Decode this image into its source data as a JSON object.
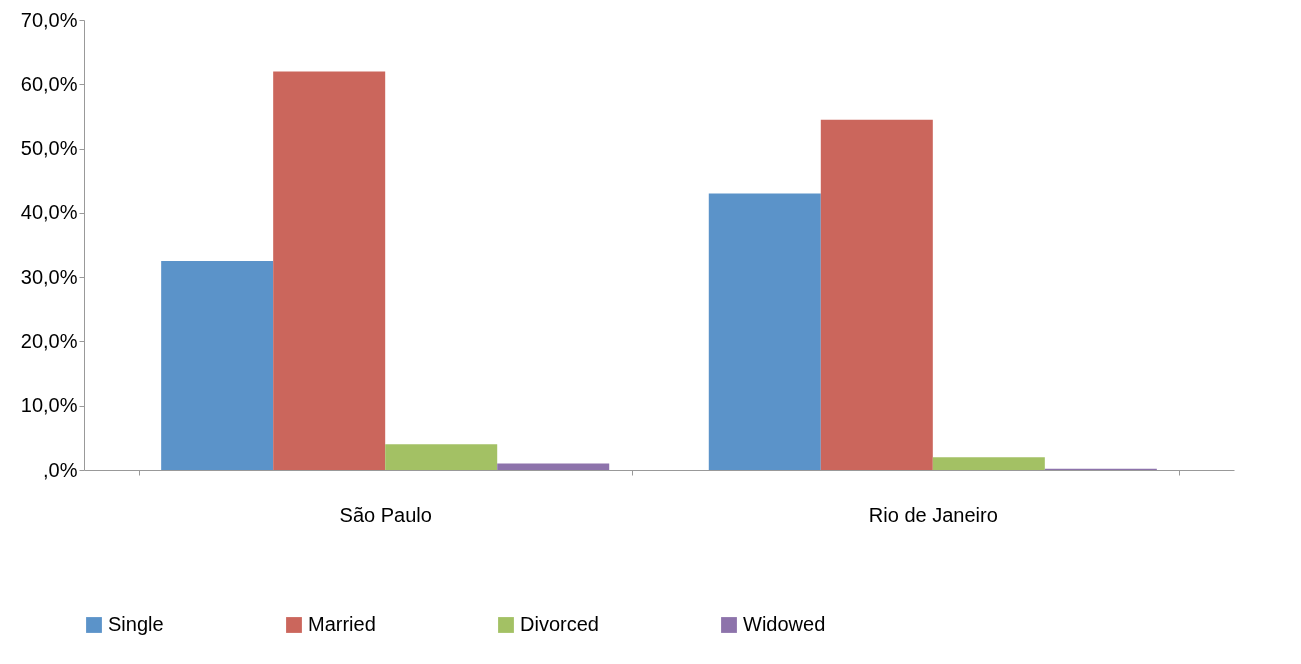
{
  "chart_data": {
    "type": "bar",
    "categories": [
      "São Paulo",
      "Rio de Janeiro"
    ],
    "series": [
      {
        "name": "Single",
        "color": "#5b93c9",
        "values": [
          32.5,
          43
        ]
      },
      {
        "name": "Married",
        "color": "#cb665c",
        "values": [
          62,
          54.5
        ]
      },
      {
        "name": "Divorced",
        "color": "#a3c164",
        "values": [
          4,
          2
        ]
      },
      {
        "name": "Widowed",
        "color": "#8d73ab",
        "values": [
          1,
          0.2
        ]
      }
    ],
    "ylim": [
      0,
      70
    ],
    "yticks": [
      {
        "value": 0,
        "label": ",0%"
      },
      {
        "value": 10,
        "label": "10,0%"
      },
      {
        "value": 20,
        "label": "20,0%"
      },
      {
        "value": 30,
        "label": "30,0%"
      },
      {
        "value": 40,
        "label": "40,0%"
      },
      {
        "value": 50,
        "label": "50,0%"
      },
      {
        "value": 60,
        "label": "60,0%"
      },
      {
        "value": 70,
        "label": "70,0%"
      }
    ],
    "grid": false,
    "legend": "bottom"
  }
}
